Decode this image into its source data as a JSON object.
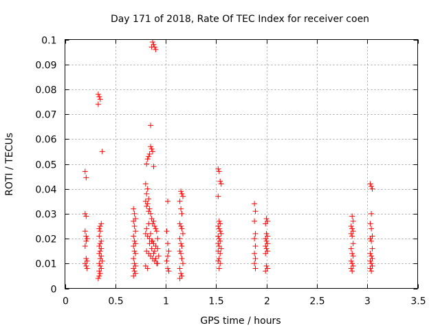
{
  "chart_data": {
    "type": "scatter",
    "title": "Day 171 of 2018, Rate Of TEC Index for receiver coen",
    "xlabel": "GPS time / hours",
    "ylabel": "ROTI / TECUs",
    "xlim": [
      0,
      3.5
    ],
    "ylim": [
      0,
      0.1
    ],
    "x_ticks": [
      0,
      0.5,
      1,
      1.5,
      2,
      2.5,
      3,
      3.5
    ],
    "x_tick_labels": [
      "0",
      "0.5",
      "1",
      "1.5",
      "2",
      "2.5",
      "3",
      "3.5"
    ],
    "y_ticks": [
      0,
      0.01,
      0.02,
      0.03,
      0.04,
      0.05,
      0.06,
      0.07,
      0.08,
      0.09,
      0.1
    ],
    "y_tick_labels": [
      "0",
      "0.01",
      "0.02",
      "0.03",
      "0.04",
      "0.05",
      "0.06",
      "0.07",
      "0.08",
      "0.09",
      "0.1"
    ],
    "grid": true,
    "marker": "+",
    "color": "#ff0000",
    "series": [
      {
        "points": [
          [
            0.2,
            0.047
          ],
          [
            0.21,
            0.0445
          ],
          [
            0.2,
            0.03
          ],
          [
            0.21,
            0.029
          ],
          [
            0.2,
            0.023
          ],
          [
            0.21,
            0.021
          ],
          [
            0.22,
            0.02
          ],
          [
            0.21,
            0.019
          ],
          [
            0.2,
            0.017
          ],
          [
            0.21,
            0.012
          ],
          [
            0.22,
            0.011
          ],
          [
            0.2,
            0.01
          ],
          [
            0.21,
            0.009
          ],
          [
            0.22,
            0.008
          ],
          [
            0.33,
            0.078
          ],
          [
            0.35,
            0.076
          ],
          [
            0.34,
            0.077
          ],
          [
            0.33,
            0.074
          ],
          [
            0.37,
            0.055
          ],
          [
            0.36,
            0.026
          ],
          [
            0.35,
            0.025
          ],
          [
            0.34,
            0.024
          ],
          [
            0.35,
            0.023
          ],
          [
            0.34,
            0.021
          ],
          [
            0.36,
            0.019
          ],
          [
            0.35,
            0.018
          ],
          [
            0.34,
            0.017
          ],
          [
            0.36,
            0.016
          ],
          [
            0.35,
            0.015
          ],
          [
            0.34,
            0.014
          ],
          [
            0.36,
            0.013
          ],
          [
            0.35,
            0.012
          ],
          [
            0.37,
            0.011
          ],
          [
            0.34,
            0.01
          ],
          [
            0.35,
            0.009
          ],
          [
            0.36,
            0.008
          ],
          [
            0.34,
            0.007
          ],
          [
            0.35,
            0.006
          ],
          [
            0.34,
            0.005
          ],
          [
            0.33,
            0.004
          ],
          [
            0.68,
            0.032
          ],
          [
            0.69,
            0.03
          ],
          [
            0.7,
            0.028
          ],
          [
            0.68,
            0.027
          ],
          [
            0.69,
            0.025
          ],
          [
            0.7,
            0.023
          ],
          [
            0.68,
            0.021
          ],
          [
            0.69,
            0.019
          ],
          [
            0.7,
            0.018
          ],
          [
            0.68,
            0.017
          ],
          [
            0.69,
            0.015
          ],
          [
            0.7,
            0.014
          ],
          [
            0.68,
            0.012
          ],
          [
            0.69,
            0.01
          ],
          [
            0.7,
            0.009
          ],
          [
            0.68,
            0.008
          ],
          [
            0.69,
            0.007
          ],
          [
            0.7,
            0.006
          ],
          [
            0.68,
            0.005
          ],
          [
            0.87,
            0.099
          ],
          [
            0.88,
            0.098
          ],
          [
            0.89,
            0.097
          ],
          [
            0.9,
            0.096
          ],
          [
            0.86,
            0.097
          ],
          [
            0.85,
            0.0655
          ],
          [
            0.85,
            0.057
          ],
          [
            0.86,
            0.056
          ],
          [
            0.87,
            0.055
          ],
          [
            0.84,
            0.054
          ],
          [
            0.83,
            0.053
          ],
          [
            0.82,
            0.052
          ],
          [
            0.81,
            0.05
          ],
          [
            0.88,
            0.049
          ],
          [
            0.8,
            0.042
          ],
          [
            0.82,
            0.04
          ],
          [
            0.81,
            0.038
          ],
          [
            0.83,
            0.036
          ],
          [
            0.8,
            0.035
          ],
          [
            0.82,
            0.034
          ],
          [
            0.81,
            0.033
          ],
          [
            0.84,
            0.032
          ],
          [
            0.83,
            0.031
          ],
          [
            0.85,
            0.03
          ],
          [
            0.86,
            0.028
          ],
          [
            0.88,
            0.027
          ],
          [
            0.87,
            0.026
          ],
          [
            0.89,
            0.025
          ],
          [
            0.9,
            0.024
          ],
          [
            0.91,
            0.023
          ],
          [
            0.8,
            0.022
          ],
          [
            0.82,
            0.021
          ],
          [
            0.84,
            0.02
          ],
          [
            0.86,
            0.019
          ],
          [
            0.88,
            0.018
          ],
          [
            0.9,
            0.017
          ],
          [
            0.92,
            0.016
          ],
          [
            0.81,
            0.015
          ],
          [
            0.83,
            0.014
          ],
          [
            0.85,
            0.013
          ],
          [
            0.87,
            0.012
          ],
          [
            0.89,
            0.011
          ],
          [
            0.91,
            0.01
          ],
          [
            0.8,
            0.009
          ],
          [
            0.82,
            0.008
          ],
          [
            0.84,
            0.018
          ],
          [
            0.86,
            0.016
          ],
          [
            0.88,
            0.014
          ],
          [
            0.9,
            0.012
          ],
          [
            0.92,
            0.02
          ],
          [
            0.81,
            0.024
          ],
          [
            0.83,
            0.026
          ],
          [
            0.85,
            0.022
          ],
          [
            0.87,
            0.019
          ],
          [
            0.89,
            0.015
          ],
          [
            0.93,
            0.013
          ],
          [
            0.92,
            0.01
          ],
          [
            1.02,
            0.035
          ],
          [
            1.01,
            0.023
          ],
          [
            1.02,
            0.018
          ],
          [
            1.03,
            0.015
          ],
          [
            1.02,
            0.013
          ],
          [
            1.01,
            0.011
          ],
          [
            1.02,
            0.008
          ],
          [
            1.03,
            0.007
          ],
          [
            1.15,
            0.039
          ],
          [
            1.16,
            0.038
          ],
          [
            1.17,
            0.037
          ],
          [
            1.14,
            0.035
          ],
          [
            1.15,
            0.032
          ],
          [
            1.16,
            0.03
          ],
          [
            1.14,
            0.026
          ],
          [
            1.15,
            0.025
          ],
          [
            1.16,
            0.024
          ],
          [
            1.17,
            0.022
          ],
          [
            1.14,
            0.02
          ],
          [
            1.15,
            0.018
          ],
          [
            1.16,
            0.017
          ],
          [
            1.14,
            0.015
          ],
          [
            1.15,
            0.014
          ],
          [
            1.16,
            0.012
          ],
          [
            1.17,
            0.01
          ],
          [
            1.14,
            0.008
          ],
          [
            1.15,
            0.006
          ],
          [
            1.16,
            0.005
          ],
          [
            1.14,
            0.004
          ],
          [
            1.52,
            0.048
          ],
          [
            1.53,
            0.047
          ],
          [
            1.54,
            0.043
          ],
          [
            1.55,
            0.042
          ],
          [
            1.52,
            0.037
          ],
          [
            1.53,
            0.027
          ],
          [
            1.54,
            0.026
          ],
          [
            1.52,
            0.025
          ],
          [
            1.53,
            0.024
          ],
          [
            1.54,
            0.023
          ],
          [
            1.55,
            0.022
          ],
          [
            1.52,
            0.021
          ],
          [
            1.53,
            0.02
          ],
          [
            1.54,
            0.019
          ],
          [
            1.52,
            0.018
          ],
          [
            1.53,
            0.017
          ],
          [
            1.55,
            0.016
          ],
          [
            1.52,
            0.015
          ],
          [
            1.54,
            0.014
          ],
          [
            1.53,
            0.012
          ],
          [
            1.52,
            0.011
          ],
          [
            1.54,
            0.01
          ],
          [
            1.53,
            0.008
          ],
          [
            1.88,
            0.034
          ],
          [
            1.89,
            0.031
          ],
          [
            1.88,
            0.027
          ],
          [
            1.89,
            0.022
          ],
          [
            1.88,
            0.02
          ],
          [
            1.89,
            0.017
          ],
          [
            1.88,
            0.014
          ],
          [
            1.89,
            0.012
          ],
          [
            1.88,
            0.01
          ],
          [
            1.89,
            0.008
          ],
          [
            2.0,
            0.028
          ],
          [
            2.01,
            0.027
          ],
          [
            1.99,
            0.026
          ],
          [
            2.0,
            0.022
          ],
          [
            2.01,
            0.021
          ],
          [
            1.99,
            0.02
          ],
          [
            2.0,
            0.019
          ],
          [
            2.01,
            0.018
          ],
          [
            1.99,
            0.017
          ],
          [
            2.0,
            0.016
          ],
          [
            2.01,
            0.015
          ],
          [
            1.99,
            0.014
          ],
          [
            2.0,
            0.009
          ],
          [
            2.01,
            0.008
          ],
          [
            1.99,
            0.007
          ],
          [
            2.85,
            0.029
          ],
          [
            2.86,
            0.027
          ],
          [
            2.84,
            0.025
          ],
          [
            2.85,
            0.024
          ],
          [
            2.86,
            0.023
          ],
          [
            2.84,
            0.022
          ],
          [
            2.85,
            0.021
          ],
          [
            2.86,
            0.018
          ],
          [
            2.84,
            0.016
          ],
          [
            2.85,
            0.014
          ],
          [
            2.86,
            0.013
          ],
          [
            2.84,
            0.011
          ],
          [
            2.85,
            0.01
          ],
          [
            2.86,
            0.009
          ],
          [
            2.84,
            0.008
          ],
          [
            2.85,
            0.007
          ],
          [
            3.03,
            0.042
          ],
          [
            3.04,
            0.041
          ],
          [
            3.05,
            0.04
          ],
          [
            3.04,
            0.03
          ],
          [
            3.03,
            0.026
          ],
          [
            3.04,
            0.024
          ],
          [
            3.05,
            0.021
          ],
          [
            3.03,
            0.02
          ],
          [
            3.04,
            0.019
          ],
          [
            3.05,
            0.016
          ],
          [
            3.03,
            0.014
          ],
          [
            3.04,
            0.013
          ],
          [
            3.05,
            0.012
          ],
          [
            3.03,
            0.011
          ],
          [
            3.04,
            0.01
          ],
          [
            3.05,
            0.009
          ],
          [
            3.03,
            0.008
          ],
          [
            3.04,
            0.007
          ]
        ]
      }
    ]
  }
}
